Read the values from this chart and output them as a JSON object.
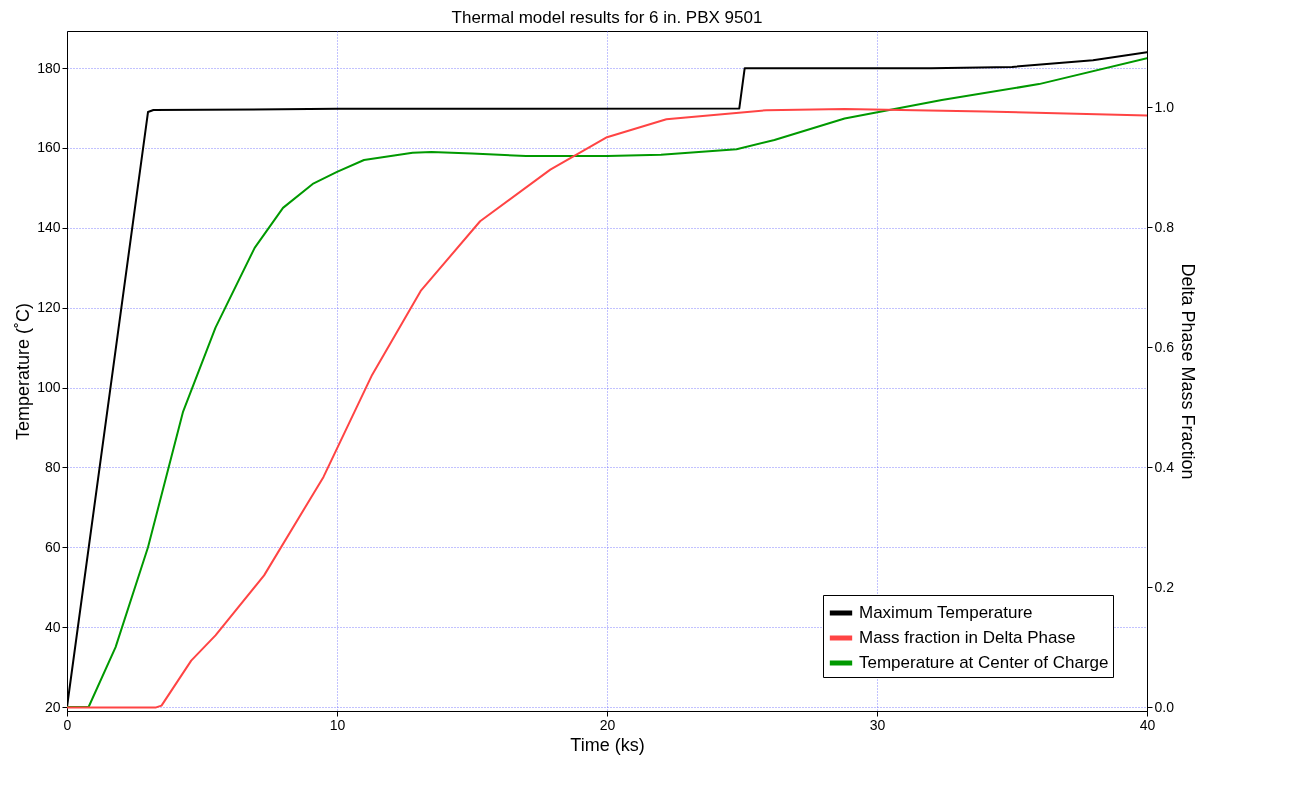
{
  "chart_data": {
    "type": "line",
    "title": "Thermal model results for 6 in. PBX 9501",
    "xlabel": "Time (ks)",
    "ylabel": "Temperature (˚C)",
    "y2label": "Delta Phase Mass Fraction",
    "xlim": [
      0,
      40
    ],
    "xticks": [
      0,
      10,
      20,
      30,
      40
    ],
    "ylim": [
      19,
      189.3
    ],
    "yticks": [
      20,
      40,
      60,
      80,
      100,
      120,
      140,
      160,
      180
    ],
    "y2lim": [
      -0.006,
      1.127
    ],
    "y2ticks": [
      {
        "value": 0,
        "label": "0.0"
      },
      0.2,
      0.4,
      0.6,
      0.8,
      {
        "value": 1,
        "label": "1.0"
      }
    ],
    "grid": true,
    "legend": "bottom right",
    "line_style": "solid",
    "series": [
      {
        "name": "Maximum Temperature",
        "color": "#000000",
        "x": [
          0,
          3,
          3.2,
          10,
          24.9,
          25.1,
          32,
          35,
          38,
          40
        ],
        "values": [
          20,
          169,
          169.5,
          169.8,
          169.9,
          180,
          180,
          180.3,
          182,
          184
        ]
      },
      {
        "name": "Mass fraction in Delta Phase",
        "color": "#ff4444",
        "axis": "y2",
        "x": [
          0,
          3.3,
          3.5,
          4.6,
          5.5,
          7.3,
          9.5,
          11.3,
          13.1,
          15.3,
          17.9,
          20,
          22.2,
          25.9,
          28.8,
          34,
          40
        ],
        "values": [
          0,
          0,
          0.003,
          0.078,
          0.12,
          0.22,
          0.384,
          0.554,
          0.694,
          0.81,
          0.896,
          0.95,
          0.98,
          0.995,
          0.997,
          0.993,
          0.986
        ]
      },
      {
        "name": "Temperature at Center of Charge",
        "color": "#009900",
        "x": [
          0,
          0.8,
          1.8,
          3,
          4.3,
          5.5,
          6.95,
          8,
          9.1,
          10,
          11,
          12.8,
          13.5,
          15,
          17,
          20,
          22,
          24.8,
          26.2,
          28.8,
          32.4,
          36,
          40
        ],
        "values": [
          20,
          20,
          35,
          60,
          94,
          115,
          135,
          145,
          151,
          154,
          157,
          158.8,
          159,
          158.6,
          158,
          158,
          158.3,
          159.7,
          162,
          167.4,
          172,
          176,
          182.5
        ]
      }
    ]
  }
}
